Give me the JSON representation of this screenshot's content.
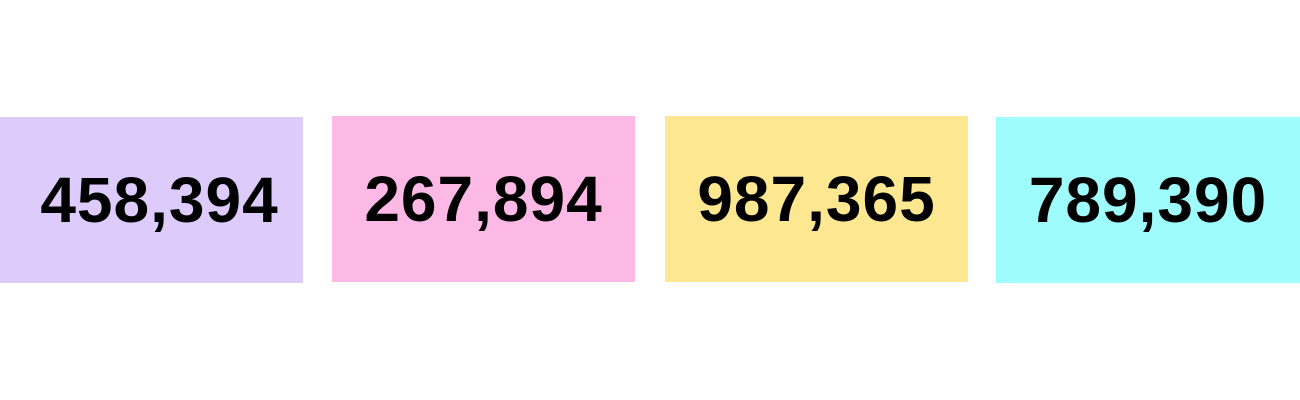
{
  "tiles": [
    {
      "value": "458,394",
      "color": "#dccbfb"
    },
    {
      "value": "267,894",
      "color": "#fdb9e5"
    },
    {
      "value": "987,365",
      "color": "#fde891"
    },
    {
      "value": "789,390",
      "color": "#9ffcfc"
    }
  ]
}
